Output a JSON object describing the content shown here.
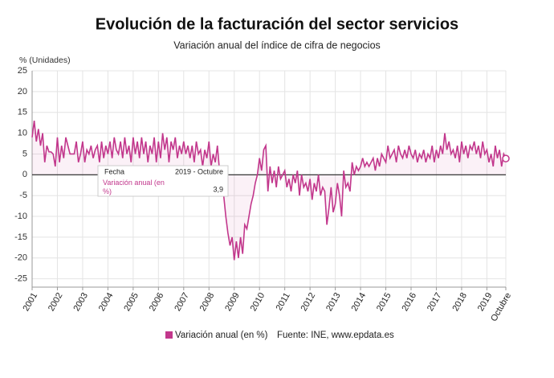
{
  "chart_data": {
    "type": "line",
    "title": "Evolución de la facturación del sector servicios",
    "subtitle": "Variación anual del índice de cifra de negocios",
    "y_label": "% (Unidades)",
    "source": "Fuente: INE, www.epdata.es",
    "categories": [
      "2001",
      null,
      null,
      null,
      null,
      null,
      null,
      null,
      null,
      null,
      null,
      null,
      "2002",
      null,
      null,
      null,
      null,
      null,
      null,
      null,
      null,
      null,
      null,
      null,
      "2003",
      null,
      null,
      null,
      null,
      null,
      null,
      null,
      null,
      null,
      null,
      null,
      "2004",
      null,
      null,
      null,
      null,
      null,
      null,
      null,
      null,
      null,
      null,
      null,
      "2005",
      null,
      null,
      null,
      null,
      null,
      null,
      null,
      null,
      null,
      null,
      null,
      "2006",
      null,
      null,
      null,
      null,
      null,
      null,
      null,
      null,
      null,
      null,
      null,
      "2007",
      null,
      null,
      null,
      null,
      null,
      null,
      null,
      null,
      null,
      null,
      null,
      "2008",
      null,
      null,
      null,
      null,
      null,
      null,
      null,
      null,
      null,
      null,
      null,
      "2009",
      null,
      null,
      null,
      null,
      null,
      null,
      null,
      null,
      null,
      null,
      null,
      "2010",
      null,
      null,
      null,
      null,
      null,
      null,
      null,
      null,
      null,
      null,
      null,
      "2011",
      null,
      null,
      null,
      null,
      null,
      null,
      null,
      null,
      null,
      null,
      null,
      "2012",
      null,
      null,
      null,
      null,
      null,
      null,
      null,
      null,
      null,
      null,
      null,
      "2013",
      null,
      null,
      null,
      null,
      null,
      null,
      null,
      null,
      null,
      null,
      null,
      "2014",
      null,
      null,
      null,
      null,
      null,
      null,
      null,
      null,
      null,
      null,
      null,
      "2015",
      null,
      null,
      null,
      null,
      null,
      null,
      null,
      null,
      null,
      null,
      null,
      "2016",
      null,
      null,
      null,
      null,
      null,
      null,
      null,
      null,
      null,
      null,
      null,
      "2017",
      null,
      null,
      null,
      null,
      null,
      null,
      null,
      null,
      null,
      null,
      null,
      "2018",
      null,
      null,
      null,
      null,
      null,
      null,
      null,
      null,
      null,
      null,
      null,
      "2019",
      null,
      null,
      null,
      null,
      null,
      null,
      null,
      null,
      "Octubre"
    ],
    "series": [
      {
        "name": "Variación anual (en %)",
        "color": "#c2378c",
        "values": [
          9,
          13,
          8,
          11,
          7,
          10,
          3,
          7,
          5.5,
          5.5,
          5,
          2,
          9,
          3,
          7,
          4,
          9,
          7,
          5,
          5,
          5,
          8,
          3,
          5,
          8,
          3,
          6,
          5,
          7,
          4,
          6,
          7,
          3,
          8,
          4,
          7,
          5,
          8,
          4,
          9,
          6,
          5,
          8,
          4,
          9,
          5,
          7,
          3,
          9,
          5,
          8,
          4,
          9,
          5,
          8,
          3,
          7,
          5,
          9,
          3,
          8,
          4,
          10,
          6,
          9,
          3,
          8,
          6,
          9,
          4,
          7,
          5,
          8,
          5,
          7,
          4,
          7,
          3,
          8,
          5,
          6,
          2,
          6,
          4,
          8,
          2,
          5,
          3,
          7,
          1,
          -3,
          -5,
          -10,
          -14,
          -17,
          -15,
          -20.5,
          -16,
          -20,
          -15,
          -19,
          -12,
          -13,
          -10,
          -7,
          -5,
          -2,
          0,
          4,
          1,
          6,
          7,
          -4,
          2,
          -2,
          1,
          -3,
          2,
          -1,
          0,
          1,
          -3,
          -1,
          -4,
          0,
          -2,
          1,
          -5,
          0,
          -3,
          -2,
          -4,
          -1,
          -6,
          -2,
          -4,
          0,
          -5,
          -3,
          -4,
          -12,
          -8,
          -3,
          -9,
          -7,
          -2,
          -5,
          -10,
          1,
          -3,
          -2,
          -4,
          3,
          0,
          2,
          1,
          2,
          4,
          2,
          3,
          2,
          3,
          4,
          1,
          4,
          2,
          5,
          4,
          3,
          7,
          4,
          5,
          6,
          3,
          7,
          5,
          4,
          6,
          4,
          7,
          5,
          4,
          6,
          3,
          5,
          4,
          6,
          3,
          5,
          4,
          7,
          3,
          6,
          4,
          7,
          5,
          10,
          6,
          8,
          5,
          6,
          4,
          7,
          3,
          8,
          5,
          7,
          4,
          7,
          6,
          8,
          5,
          7,
          4,
          8,
          5,
          6,
          3,
          5,
          2,
          7,
          4,
          6,
          2,
          5,
          3.9
        ]
      }
    ],
    "tooltip": {
      "label": "Fecha",
      "date": "2019 - Octubre",
      "value_label": "3,9"
    },
    "ylim": [
      -27,
      25
    ],
    "yticks": [
      -25,
      -20,
      -15,
      -10,
      -5,
      0,
      5,
      10,
      15,
      20,
      25
    ],
    "grid": true
  }
}
